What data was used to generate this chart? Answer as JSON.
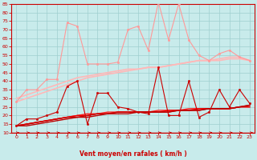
{
  "x": [
    0,
    1,
    2,
    3,
    4,
    5,
    6,
    7,
    8,
    9,
    10,
    11,
    12,
    13,
    14,
    15,
    16,
    17,
    18,
    19,
    20,
    21,
    22,
    23
  ],
  "series": [
    {
      "name": "rafales_light",
      "color": "#FF9999",
      "linewidth": 0.8,
      "marker": "o",
      "markersize": 1.8,
      "values": [
        28,
        35,
        35,
        41,
        41,
        74,
        72,
        50,
        50,
        50,
        51,
        70,
        72,
        58,
        86,
        64,
        85,
        64,
        55,
        52,
        56,
        58,
        54,
        52
      ]
    },
    {
      "name": "moy_light1",
      "color": "#FFB8B8",
      "linewidth": 1.2,
      "marker": null,
      "markersize": 0,
      "values": [
        30,
        32,
        34,
        36,
        38,
        40,
        42,
        43,
        44,
        45,
        46,
        47,
        47,
        48,
        48,
        49,
        50,
        51,
        52,
        52,
        52,
        53,
        53,
        52
      ]
    },
    {
      "name": "moy_light2",
      "color": "#FFB8B8",
      "linewidth": 1.2,
      "marker": null,
      "markersize": 0,
      "values": [
        28,
        30,
        32,
        34,
        36,
        38,
        40,
        42,
        43,
        44,
        45,
        46,
        47,
        48,
        48,
        49,
        50,
        51,
        52,
        52,
        53,
        54,
        54,
        52
      ]
    },
    {
      "name": "rafales_dark",
      "color": "#CC0000",
      "linewidth": 0.8,
      "marker": "o",
      "markersize": 1.8,
      "values": [
        14,
        18,
        18,
        20,
        22,
        37,
        40,
        15,
        33,
        33,
        25,
        24,
        22,
        21,
        48,
        20,
        20,
        40,
        19,
        22,
        35,
        25,
        35,
        27
      ]
    },
    {
      "name": "moy_dark1",
      "color": "#FF2222",
      "linewidth": 1.0,
      "marker": null,
      "markersize": 0,
      "values": [
        14,
        15,
        16,
        17,
        18,
        19,
        20,
        21,
        21,
        22,
        22,
        22,
        22,
        22,
        23,
        23,
        23,
        24,
        24,
        24,
        24,
        24,
        25,
        25
      ]
    },
    {
      "name": "moy_dark2",
      "color": "#EE0000",
      "linewidth": 1.0,
      "marker": null,
      "markersize": 0,
      "values": [
        14,
        15,
        16,
        17,
        18,
        19,
        20,
        20,
        21,
        21,
        22,
        22,
        22,
        22,
        22,
        23,
        23,
        23,
        24,
        24,
        24,
        24,
        25,
        25
      ]
    },
    {
      "name": "moy_dark3",
      "color": "#CC0000",
      "linewidth": 1.0,
      "marker": null,
      "markersize": 0,
      "values": [
        14,
        15,
        16,
        17,
        18,
        19,
        19,
        20,
        21,
        21,
        22,
        22,
        22,
        22,
        22,
        22,
        23,
        23,
        23,
        24,
        24,
        24,
        25,
        26
      ]
    },
    {
      "name": "moy_dark4",
      "color": "#BB0000",
      "linewidth": 1.0,
      "marker": null,
      "markersize": 0,
      "values": [
        14,
        14,
        15,
        16,
        17,
        18,
        19,
        19,
        20,
        21,
        21,
        21,
        22,
        22,
        22,
        22,
        23,
        23,
        23,
        24,
        24,
        24,
        25,
        26
      ]
    }
  ],
  "xlabel": "Vent moyen/en rafales ( km/h )",
  "xlim": [
    -0.5,
    23.5
  ],
  "ylim": [
    10,
    85
  ],
  "yticks": [
    10,
    15,
    20,
    25,
    30,
    35,
    40,
    45,
    50,
    55,
    60,
    65,
    70,
    75,
    80,
    85
  ],
  "xticks": [
    0,
    1,
    2,
    3,
    4,
    5,
    6,
    7,
    8,
    9,
    10,
    11,
    12,
    13,
    14,
    15,
    16,
    17,
    18,
    19,
    20,
    21,
    22,
    23
  ],
  "bg_color": "#C8EBEB",
  "grid_color": "#9FCFCF",
  "arrow_color": "#CC0000",
  "xlabel_color": "#CC0000",
  "tick_color": "#CC0000",
  "axis_color": "#CC0000"
}
